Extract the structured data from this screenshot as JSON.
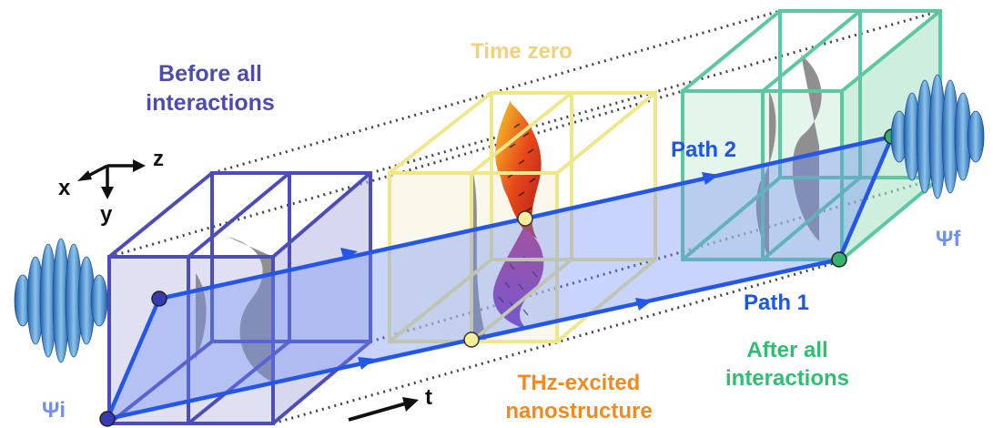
{
  "labels": {
    "before": [
      "Before all",
      "interactions"
    ],
    "time_zero": "Time zero",
    "path2": "Path 2",
    "path1": "Path 1",
    "after": [
      "After all",
      "interactions"
    ],
    "thz": [
      "THz-excited",
      "nanostructure"
    ],
    "psi_i": "Ψi",
    "psi_f": "Ψf",
    "axis_x": "x",
    "axis_y": "y",
    "axis_z": "z",
    "axis_t": "t"
  },
  "colors": {
    "purple_box": "#4d4db8",
    "yellow_box": "#f0e68c",
    "green_box": "#5cc7a0",
    "path_blue": "#2457e8",
    "plane_fill": "#6f8ff5",
    "wave": "#3b7fc7",
    "dotted": "#444444"
  }
}
